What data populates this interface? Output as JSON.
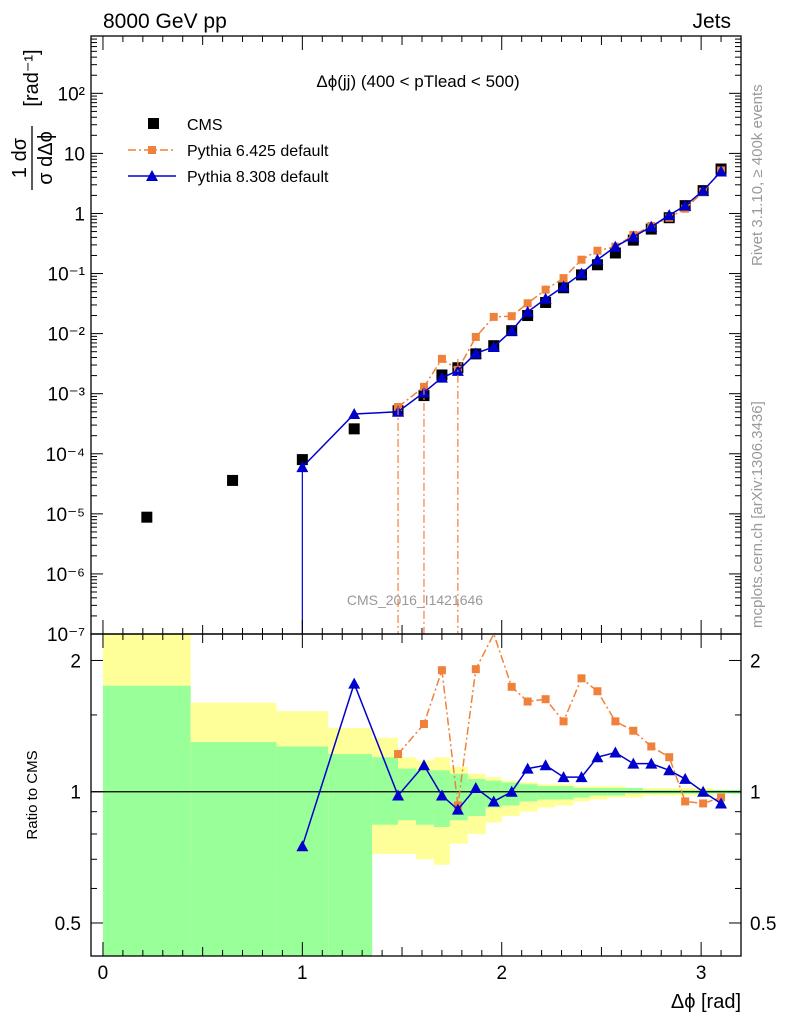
{
  "header": {
    "left": "8000 GeV pp",
    "right": "Jets"
  },
  "side_labels": {
    "rivet": "Rivet 3.1.10, ≥ 400k events",
    "mcplots": "mcplots.cern.ch [arXiv:1306.3436]"
  },
  "chart_data": [
    {
      "panel": "main",
      "type": "scatter",
      "title": "Δϕ(jj) (400 < pTlead <  500)",
      "watermark": "CMS_2016_I1421646",
      "xlabel": "Δϕ [rad]",
      "ylabel": "1/σ dσ/dΔϕ [rad⁻¹]",
      "xlim": [
        -0.06,
        3.2
      ],
      "ylim": [
        1e-07,
        900
      ],
      "yscale": "log",
      "legend_position": "top-left",
      "ytick_labels": [
        "10⁻⁷",
        "10⁻⁶",
        "10⁻⁵",
        "10⁻⁴",
        "10⁻³",
        "10⁻²",
        "10⁻¹",
        "1",
        "10",
        "10²"
      ],
      "series": [
        {
          "name": "CMS",
          "color": "#000000",
          "marker": "square",
          "x": [
            0.22,
            0.65,
            1.0,
            1.26,
            1.48,
            1.61,
            1.7,
            1.78,
            1.87,
            1.96,
            2.05,
            2.13,
            2.22,
            2.31,
            2.4,
            2.48,
            2.57,
            2.66,
            2.75,
            2.84,
            2.92,
            3.01,
            3.1
          ],
          "y": [
            8.8e-06,
            3.6e-05,
            8e-05,
            0.00026,
            0.00052,
            0.00093,
            0.00205,
            0.0027,
            0.0046,
            0.0063,
            0.0112,
            0.02,
            0.033,
            0.058,
            0.095,
            0.14,
            0.22,
            0.36,
            0.55,
            0.85,
            1.35,
            2.4,
            5.5
          ]
        },
        {
          "name": "Pythia 6.425 default",
          "color": "#f0813a",
          "marker": "square",
          "linestyle": "dash-dot",
          "x": [
            1.48,
            1.61,
            1.7,
            1.78,
            1.87,
            1.96,
            2.05,
            2.13,
            2.22,
            2.31,
            2.4,
            2.48,
            2.57,
            2.66,
            2.75,
            2.84,
            2.92,
            3.01,
            3.1
          ],
          "y": [
            0.0006,
            0.0013,
            0.0038,
            0.0025,
            0.0088,
            0.019,
            0.0195,
            0.032,
            0.054,
            0.084,
            0.17,
            0.24,
            0.28,
            0.44,
            0.62,
            0.85,
            1.2,
            2.3,
            5.2
          ]
        },
        {
          "name": "Pythia 8.308 default",
          "color": "#0000cc",
          "marker": "triangle",
          "linestyle": "solid",
          "x": [
            1.0,
            1.26,
            1.48,
            1.61,
            1.7,
            1.78,
            1.87,
            1.96,
            2.05,
            2.13,
            2.22,
            2.31,
            2.4,
            2.48,
            2.57,
            2.66,
            2.75,
            2.84,
            2.92,
            3.01,
            3.1
          ],
          "y": [
            6e-05,
            0.00046,
            0.0005,
            0.00105,
            0.00185,
            0.0024,
            0.0047,
            0.006,
            0.0112,
            0.023,
            0.038,
            0.061,
            0.1,
            0.17,
            0.28,
            0.41,
            0.6,
            0.94,
            1.35,
            2.4,
            5.0
          ]
        }
      ]
    },
    {
      "panel": "ratio",
      "type": "line",
      "ylabel": "Ratio to CMS",
      "xlabel": "Δϕ [rad]",
      "xlim": [
        -0.06,
        3.2
      ],
      "ylim": [
        0.42,
        2.3
      ],
      "yscale": "log",
      "ytick_labels": [
        "0.5",
        "1",
        "2"
      ],
      "xtick_labels": [
        "0",
        "1",
        "2",
        "3"
      ],
      "bands": {
        "bin_edges": [
          0.0,
          0.44,
          0.87,
          1.13,
          1.35,
          1.48,
          1.57,
          1.66,
          1.74,
          1.83,
          1.92,
          2.0,
          2.09,
          2.18,
          2.27,
          2.36,
          2.44,
          2.53,
          2.62,
          2.71,
          2.79,
          2.88,
          2.97,
          3.06,
          3.2
        ],
        "yellow_low": [
          0.42,
          0.68,
          0.42,
          0.42,
          0.72,
          0.72,
          0.7,
          0.68,
          0.76,
          0.8,
          0.85,
          0.88,
          0.9,
          0.92,
          0.93,
          0.95,
          0.96,
          0.97,
          0.97,
          0.98,
          0.98,
          0.98,
          0.98,
          0.99
        ],
        "yellow_high": [
          2.3,
          1.6,
          1.53,
          1.4,
          1.33,
          1.2,
          1.18,
          1.2,
          1.14,
          1.1,
          1.08,
          1.06,
          1.05,
          1.04,
          1.04,
          1.03,
          1.03,
          1.03,
          1.02,
          1.02,
          1.02,
          1.02,
          1.02,
          1.01
        ],
        "green_low": [
          0.42,
          0.42,
          0.42,
          0.42,
          0.84,
          0.86,
          0.84,
          0.83,
          0.86,
          0.88,
          0.92,
          0.93,
          0.95,
          0.96,
          0.96,
          0.97,
          0.98,
          0.98,
          0.99,
          0.99,
          0.99,
          0.99,
          0.99,
          0.99
        ],
        "green_high": [
          1.75,
          1.3,
          1.27,
          1.22,
          1.2,
          1.13,
          1.12,
          1.12,
          1.1,
          1.07,
          1.06,
          1.05,
          1.04,
          1.03,
          1.03,
          1.02,
          1.02,
          1.02,
          1.02,
          1.01,
          1.01,
          1.01,
          1.01,
          1.01
        ]
      },
      "series": [
        {
          "name": "Pythia 6.425 default",
          "color": "#f0813a",
          "x": [
            1.48,
            1.61,
            1.7,
            1.78,
            1.87,
            1.96,
            2.05,
            2.13,
            2.22,
            2.31,
            2.4,
            2.48,
            2.57,
            2.66,
            2.75,
            2.84,
            2.92,
            3.01,
            3.1
          ],
          "y": [
            1.22,
            1.43,
            1.9,
            0.93,
            1.91,
            2.4,
            1.74,
            1.61,
            1.63,
            1.45,
            1.82,
            1.7,
            1.45,
            1.38,
            1.27,
            1.2,
            0.95,
            0.94,
            0.97
          ]
        },
        {
          "name": "Pythia 8.308 default",
          "color": "#0000cc",
          "x": [
            1.0,
            1.26,
            1.48,
            1.61,
            1.7,
            1.78,
            1.87,
            1.96,
            2.05,
            2.13,
            2.22,
            2.31,
            2.4,
            2.48,
            2.57,
            2.66,
            2.75,
            2.84,
            2.92,
            3.01,
            3.1
          ],
          "y": [
            0.75,
            1.77,
            0.98,
            1.15,
            0.98,
            0.91,
            1.02,
            0.95,
            1.0,
            1.13,
            1.15,
            1.08,
            1.08,
            1.2,
            1.23,
            1.16,
            1.16,
            1.12,
            1.07,
            1.0,
            0.94
          ]
        }
      ]
    }
  ]
}
